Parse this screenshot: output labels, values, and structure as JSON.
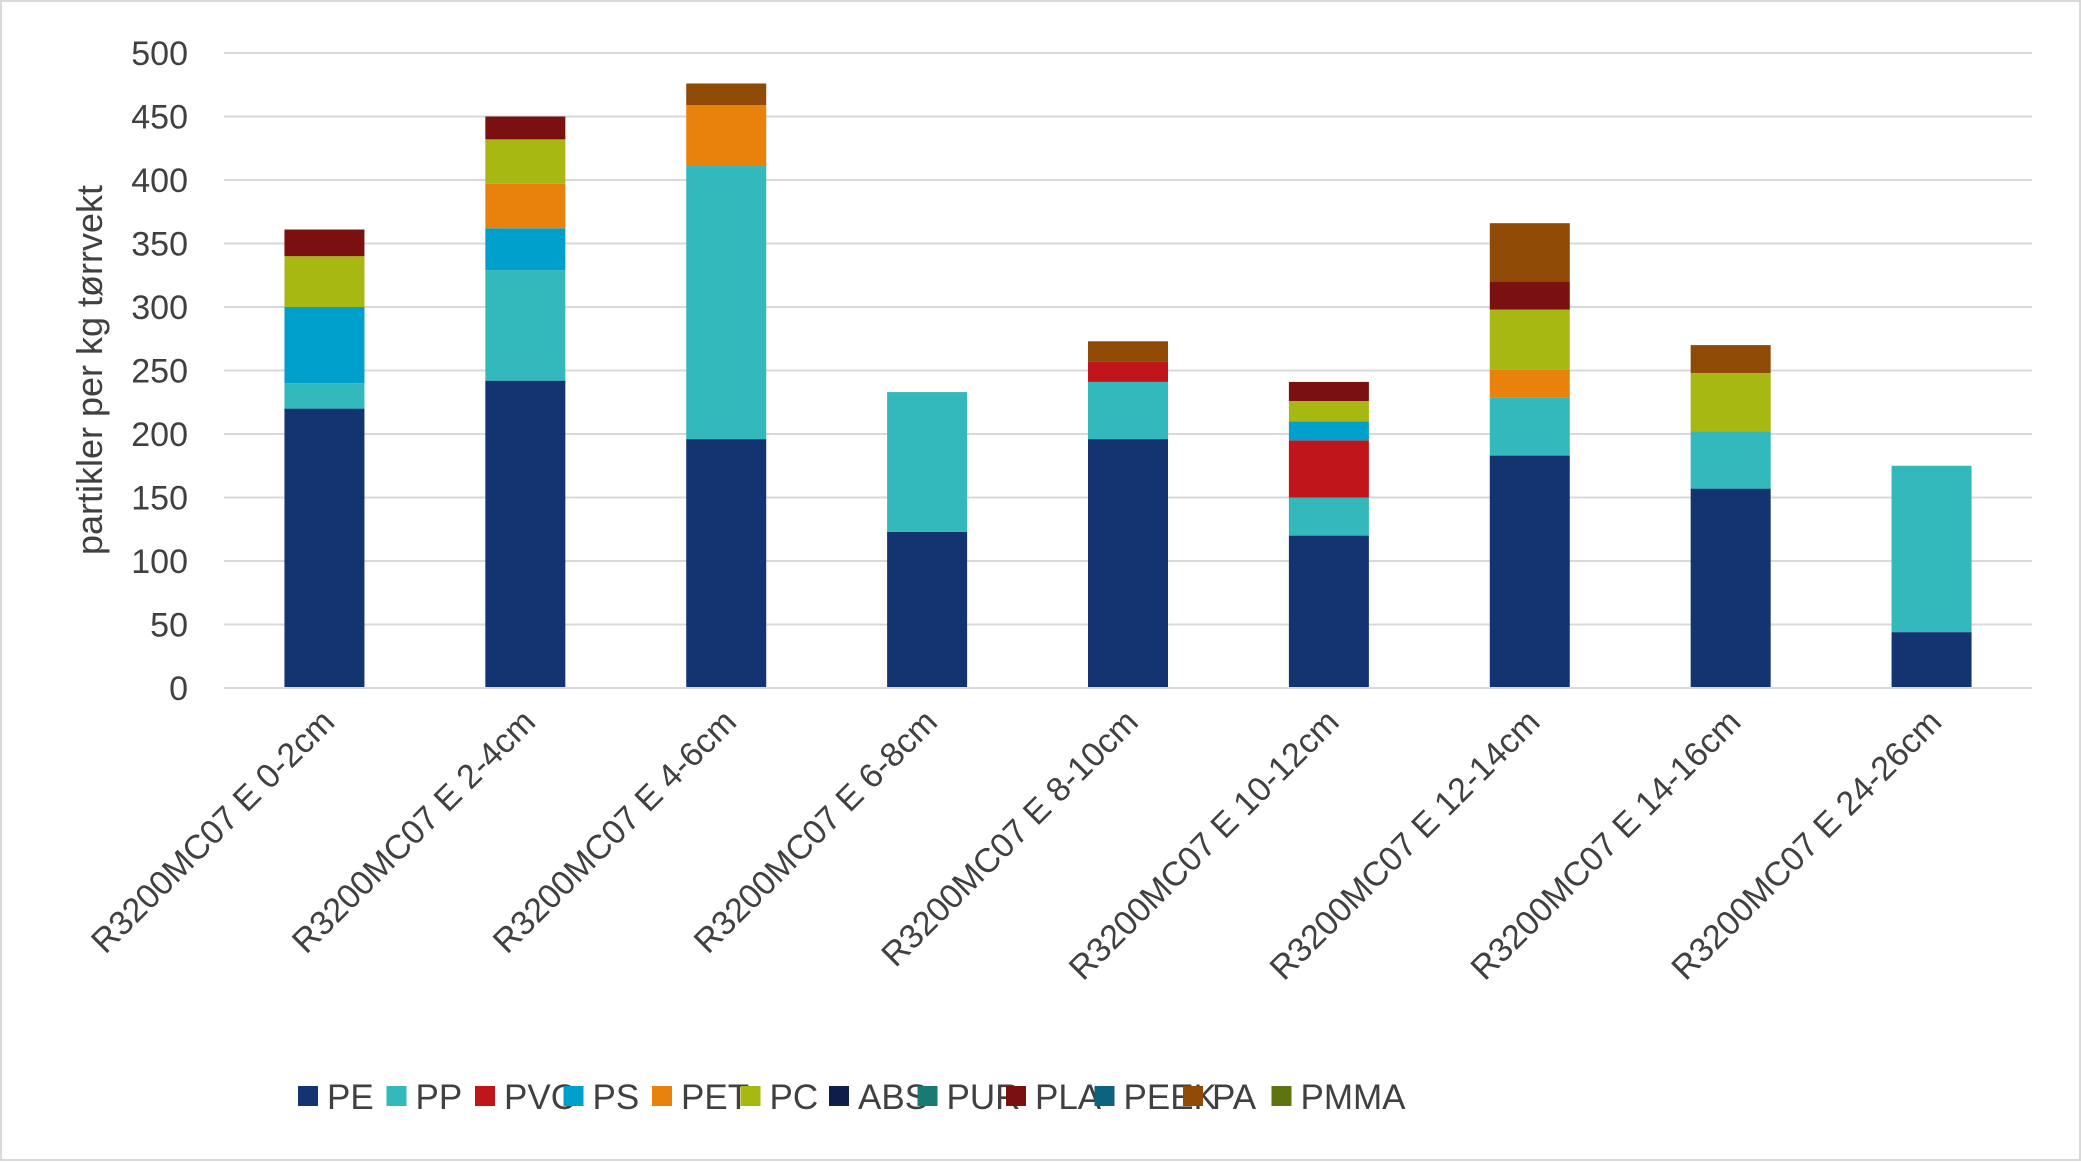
{
  "chart_data": {
    "type": "bar",
    "stacked": true,
    "title": "",
    "xlabel": "",
    "ylabel": "partikler per kg tørrvekt",
    "ylim": [
      0,
      500
    ],
    "yticks": [
      0,
      50,
      100,
      150,
      200,
      250,
      300,
      350,
      400,
      450,
      500
    ],
    "grid": true,
    "legend_position": "bottom",
    "categories": [
      "R3200MC07 E 0-2cm",
      "R3200MC07 E 2-4cm",
      "R3200MC07 E 4-6cm",
      "R3200MC07 E 6-8cm",
      "R3200MC07 E 8-10cm",
      "R3200MC07 E 10-12cm",
      "R3200MC07 E 12-14cm",
      "R3200MC07 E 14-16cm",
      "R3200MC07 E 24-26cm"
    ],
    "series": [
      {
        "name": "PE",
        "color": "#133371",
        "values": [
          220,
          242,
          196,
          123,
          196,
          120,
          183,
          157,
          44
        ]
      },
      {
        "name": "PP",
        "color": "#33B8BC",
        "values": [
          20,
          87,
          215,
          110,
          45,
          30,
          46,
          45,
          131
        ]
      },
      {
        "name": "PVC",
        "color": "#C0161B",
        "values": [
          0,
          0,
          0,
          0,
          16,
          45,
          0,
          0,
          0
        ]
      },
      {
        "name": "PS",
        "color": "#00A0CC",
        "values": [
          60,
          33,
          0,
          0,
          0,
          15,
          0,
          0,
          0
        ]
      },
      {
        "name": "PET",
        "color": "#E8820C",
        "values": [
          0,
          35,
          48,
          0,
          0,
          0,
          22,
          0,
          0
        ]
      },
      {
        "name": "PC",
        "color": "#A8B812",
        "values": [
          40,
          35,
          0,
          0,
          0,
          16,
          47,
          46,
          0
        ]
      },
      {
        "name": "ABS",
        "color": "#0E1E4C",
        "values": [
          0,
          0,
          0,
          0,
          0,
          0,
          0,
          0,
          0
        ]
      },
      {
        "name": "PUR",
        "color": "#1A7A73",
        "values": [
          0,
          0,
          0,
          0,
          0,
          0,
          0,
          0,
          0
        ]
      },
      {
        "name": "PLA",
        "color": "#7A1010",
        "values": [
          21,
          18,
          0,
          0,
          0,
          15,
          22,
          0,
          0
        ]
      },
      {
        "name": "PEEK",
        "color": "#0B6380",
        "values": [
          0,
          0,
          0,
          0,
          0,
          0,
          0,
          0,
          0
        ]
      },
      {
        "name": "PA",
        "color": "#8F4A05",
        "values": [
          0,
          0,
          17,
          0,
          16,
          0,
          46,
          22,
          0
        ]
      },
      {
        "name": "PMMA",
        "color": "#5E7411",
        "values": [
          0,
          0,
          0,
          0,
          0,
          0,
          0,
          0,
          0
        ]
      }
    ]
  }
}
